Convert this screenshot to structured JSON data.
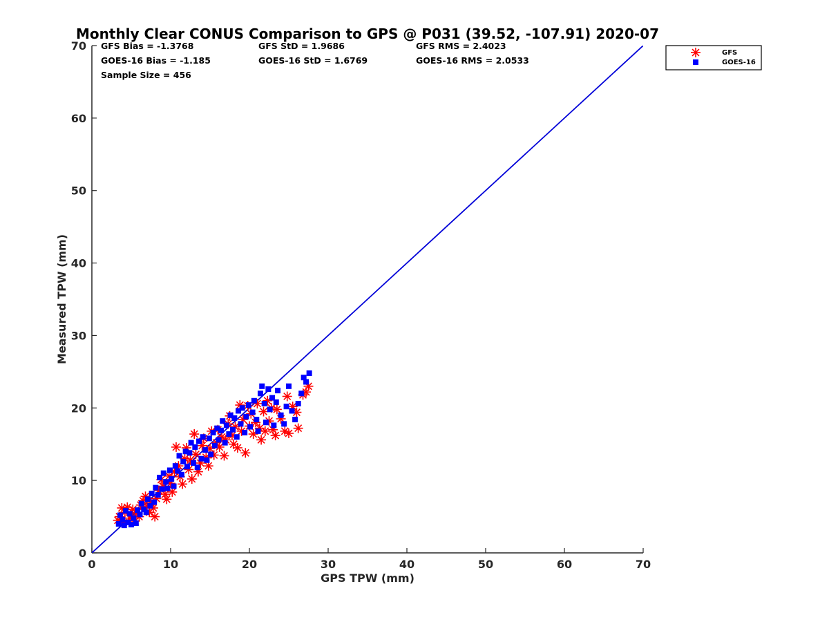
{
  "chart_data": {
    "type": "scatter",
    "title": "Monthly Clear CONUS Comparison to GPS @ P031 (39.52, -107.91) 2020-07",
    "xlabel": "GPS TPW (mm)",
    "ylabel": "Measured TPW (mm)",
    "xlim": [
      0,
      70
    ],
    "ylim": [
      0,
      70
    ],
    "xticks": [
      "0",
      "10",
      "20",
      "30",
      "40",
      "50",
      "60",
      "70"
    ],
    "yticks": [
      "0",
      "10",
      "20",
      "30",
      "40",
      "50",
      "60",
      "70"
    ],
    "grid": false,
    "legend_position": "top-right, outside plot area",
    "stats": {
      "gfs_bias": "GFS Bias = -1.3768",
      "goes_bias": "GOES-16 Bias = -1.185",
      "sample_size": "Sample Size = 456",
      "gfs_std": "GFS StD = 1.9686",
      "goes_std": "GOES-16 StD = 1.6769",
      "gfs_rms": "GFS RMS = 2.4023",
      "goes_rms": "GOES-16 RMS = 2.0533"
    },
    "reference_line": {
      "x": [
        0,
        70
      ],
      "y": [
        0,
        70
      ],
      "color": "#0000d8"
    },
    "series": [
      {
        "name": "GFS",
        "marker": "asterisk",
        "color": "#ff0000",
        "points": [
          [
            3.3,
            4.5
          ],
          [
            3.5,
            5.0
          ],
          [
            3.8,
            6.2
          ],
          [
            4.0,
            4.2
          ],
          [
            4.2,
            5.6
          ],
          [
            4.5,
            6.3
          ],
          [
            4.8,
            4.8
          ],
          [
            5.0,
            5.2
          ],
          [
            5.2,
            6.0
          ],
          [
            5.5,
            4.4
          ],
          [
            5.7,
            5.5
          ],
          [
            6.0,
            5.0
          ],
          [
            6.2,
            6.6
          ],
          [
            6.5,
            7.2
          ],
          [
            6.8,
            7.8
          ],
          [
            7.0,
            6.4
          ],
          [
            7.3,
            5.6
          ],
          [
            7.5,
            7.0
          ],
          [
            7.8,
            6.2
          ],
          [
            8.0,
            5.0
          ],
          [
            8.2,
            7.5
          ],
          [
            8.5,
            8.6
          ],
          [
            8.8,
            10.1
          ],
          [
            9.0,
            9.2
          ],
          [
            9.3,
            8.1
          ],
          [
            9.5,
            7.4
          ],
          [
            9.8,
            10.6
          ],
          [
            10.0,
            9.6
          ],
          [
            10.2,
            8.4
          ],
          [
            10.5,
            11.2
          ],
          [
            10.7,
            14.6
          ],
          [
            11.0,
            12.0
          ],
          [
            11.2,
            10.5
          ],
          [
            11.5,
            9.5
          ],
          [
            11.8,
            13.0
          ],
          [
            12.0,
            14.5
          ],
          [
            12.3,
            11.5
          ],
          [
            12.5,
            12.8
          ],
          [
            12.7,
            10.2
          ],
          [
            13.0,
            16.4
          ],
          [
            13.2,
            13.6
          ],
          [
            13.5,
            11.2
          ],
          [
            13.8,
            12.4
          ],
          [
            14.0,
            14.8
          ],
          [
            14.2,
            15.8
          ],
          [
            14.5,
            13.2
          ],
          [
            14.8,
            12.0
          ],
          [
            15.0,
            14.4
          ],
          [
            15.2,
            16.8
          ],
          [
            15.5,
            13.5
          ],
          [
            15.8,
            15.2
          ],
          [
            16.0,
            17.0
          ],
          [
            16.2,
            14.6
          ],
          [
            16.5,
            16.0
          ],
          [
            16.8,
            13.4
          ],
          [
            17.0,
            15.6
          ],
          [
            17.3,
            17.8
          ],
          [
            17.5,
            18.9
          ],
          [
            17.8,
            16.2
          ],
          [
            18.0,
            15.0
          ],
          [
            18.2,
            17.4
          ],
          [
            18.5,
            14.5
          ],
          [
            18.8,
            20.4
          ],
          [
            19.0,
            16.8
          ],
          [
            19.2,
            18.4
          ],
          [
            19.5,
            13.8
          ],
          [
            19.8,
            20.3
          ],
          [
            20.0,
            17.5
          ],
          [
            20.2,
            19.2
          ],
          [
            20.5,
            16.4
          ],
          [
            20.8,
            18.0
          ],
          [
            21.0,
            20.6
          ],
          [
            21.3,
            17.2
          ],
          [
            21.5,
            15.6
          ],
          [
            21.8,
            19.5
          ],
          [
            22.0,
            16.8
          ],
          [
            22.3,
            21.0
          ],
          [
            22.5,
            18.2
          ],
          [
            22.8,
            20.0
          ],
          [
            23.0,
            17.0
          ],
          [
            23.3,
            16.2
          ],
          [
            23.5,
            19.8
          ],
          [
            24.0,
            18.5
          ],
          [
            24.5,
            16.8
          ],
          [
            24.8,
            21.6
          ],
          [
            25.0,
            16.5
          ],
          [
            25.5,
            20.2
          ],
          [
            26.0,
            19.4
          ],
          [
            26.2,
            17.2
          ],
          [
            26.8,
            21.8
          ],
          [
            27.2,
            22.2
          ],
          [
            27.5,
            23.0
          ]
        ]
      },
      {
        "name": "GOES-16",
        "marker": "square",
        "color": "#0000ff",
        "points": [
          [
            3.4,
            4.0
          ],
          [
            3.6,
            5.2
          ],
          [
            3.9,
            4.6
          ],
          [
            4.1,
            3.8
          ],
          [
            4.3,
            5.8
          ],
          [
            4.6,
            4.2
          ],
          [
            4.8,
            5.4
          ],
          [
            5.0,
            3.9
          ],
          [
            5.3,
            4.8
          ],
          [
            5.6,
            4.1
          ],
          [
            5.8,
            5.9
          ],
          [
            6.1,
            5.3
          ],
          [
            6.3,
            6.8
          ],
          [
            6.6,
            6.0
          ],
          [
            6.9,
            5.6
          ],
          [
            7.1,
            7.4
          ],
          [
            7.4,
            6.5
          ],
          [
            7.6,
            8.2
          ],
          [
            7.9,
            7.0
          ],
          [
            8.1,
            9.0
          ],
          [
            8.4,
            8.0
          ],
          [
            8.6,
            10.4
          ],
          [
            8.9,
            8.8
          ],
          [
            9.1,
            11.0
          ],
          [
            9.4,
            9.8
          ],
          [
            9.6,
            8.9
          ],
          [
            9.9,
            11.4
          ],
          [
            10.1,
            10.2
          ],
          [
            10.4,
            9.2
          ],
          [
            10.6,
            12.0
          ],
          [
            10.9,
            11.3
          ],
          [
            11.1,
            13.4
          ],
          [
            11.4,
            10.8
          ],
          [
            11.6,
            12.6
          ],
          [
            11.9,
            14.0
          ],
          [
            12.1,
            11.9
          ],
          [
            12.4,
            13.8
          ],
          [
            12.6,
            15.2
          ],
          [
            12.9,
            12.4
          ],
          [
            13.1,
            14.6
          ],
          [
            13.4,
            11.8
          ],
          [
            13.6,
            15.4
          ],
          [
            13.9,
            13.0
          ],
          [
            14.1,
            16.0
          ],
          [
            14.4,
            14.2
          ],
          [
            14.6,
            12.8
          ],
          [
            14.9,
            15.8
          ],
          [
            15.1,
            13.6
          ],
          [
            15.4,
            16.6
          ],
          [
            15.6,
            14.8
          ],
          [
            15.9,
            17.2
          ],
          [
            16.1,
            15.6
          ],
          [
            16.4,
            16.9
          ],
          [
            16.6,
            18.2
          ],
          [
            16.9,
            15.2
          ],
          [
            17.1,
            17.6
          ],
          [
            17.4,
            16.4
          ],
          [
            17.6,
            19.0
          ],
          [
            17.9,
            17.0
          ],
          [
            18.1,
            18.6
          ],
          [
            18.4,
            16.0
          ],
          [
            18.6,
            19.6
          ],
          [
            18.9,
            17.8
          ],
          [
            19.1,
            20.0
          ],
          [
            19.4,
            16.6
          ],
          [
            19.6,
            18.8
          ],
          [
            19.9,
            20.4
          ],
          [
            20.1,
            17.4
          ],
          [
            20.4,
            19.4
          ],
          [
            20.6,
            21.0
          ],
          [
            20.9,
            18.4
          ],
          [
            21.1,
            16.8
          ],
          [
            21.4,
            22.0
          ],
          [
            21.6,
            23.0
          ],
          [
            21.9,
            20.6
          ],
          [
            22.1,
            18.0
          ],
          [
            22.4,
            22.6
          ],
          [
            22.6,
            19.8
          ],
          [
            22.9,
            21.4
          ],
          [
            23.1,
            17.6
          ],
          [
            23.4,
            20.8
          ],
          [
            23.6,
            22.4
          ],
          [
            24.0,
            19.0
          ],
          [
            24.4,
            17.8
          ],
          [
            24.7,
            20.2
          ],
          [
            25.0,
            23.0
          ],
          [
            25.4,
            19.6
          ],
          [
            25.8,
            18.4
          ],
          [
            26.2,
            20.6
          ],
          [
            26.6,
            22.0
          ],
          [
            26.9,
            24.2
          ],
          [
            27.2,
            23.6
          ],
          [
            27.6,
            24.8
          ]
        ]
      }
    ]
  }
}
